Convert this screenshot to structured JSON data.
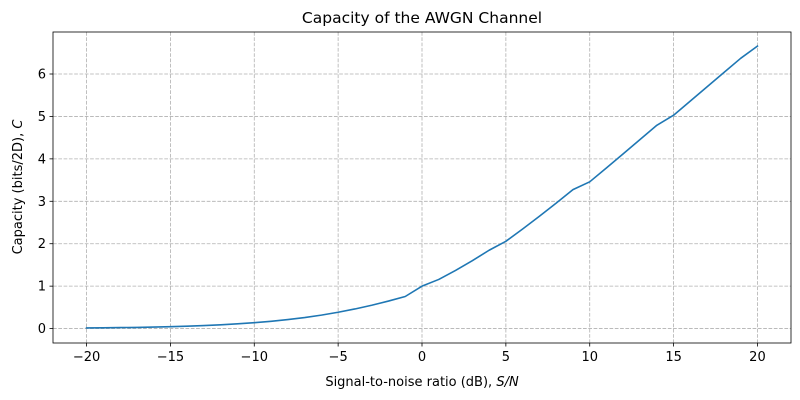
{
  "chart_data": {
    "type": "line",
    "title": "Capacity of the AWGN Channel",
    "xlabel": "Signal-to-noise ratio (dB), ",
    "xlabel_italic": "S/N",
    "ylabel": "Capacity (bits/2D), ",
    "ylabel_italic": "C",
    "xlim": [
      -22,
      22
    ],
    "ylim": [
      -0.34,
      6.99
    ],
    "xticks": [
      -20,
      -15,
      -10,
      -5,
      0,
      5,
      10,
      15,
      20
    ],
    "xtick_labels": [
      "−20",
      "−15",
      "−10",
      "−5",
      "0",
      "5",
      "10",
      "15",
      "20"
    ],
    "yticks": [
      0,
      1,
      2,
      3,
      4,
      5,
      6
    ],
    "ytick_labels": [
      "0",
      "1",
      "2",
      "3",
      "4",
      "5",
      "6"
    ],
    "grid": true,
    "series": [
      {
        "color": "#1f77b4",
        "x": [
          -20,
          -19,
          -18,
          -17,
          -16,
          -15,
          -14,
          -13,
          -12,
          -11,
          -10,
          -9,
          -8,
          -7,
          -6,
          -5,
          -4,
          -3,
          -2,
          -1,
          0,
          1,
          2,
          3,
          4,
          5,
          6,
          7,
          8,
          9,
          10,
          11,
          12,
          13,
          14,
          15,
          16,
          17,
          18,
          19,
          20
        ],
        "y": [
          0.014,
          0.018,
          0.023,
          0.028,
          0.036,
          0.045,
          0.057,
          0.071,
          0.089,
          0.112,
          0.138,
          0.171,
          0.212,
          0.26,
          0.317,
          0.385,
          0.462,
          0.55,
          0.648,
          0.756,
          1.0,
          1.158,
          1.37,
          1.6,
          1.846,
          2.057,
          2.346,
          2.647,
          2.957,
          3.275,
          3.459,
          3.788,
          4.121,
          4.456,
          4.792,
          5.028,
          5.364,
          5.7,
          6.035,
          6.37,
          6.658
        ]
      }
    ]
  }
}
